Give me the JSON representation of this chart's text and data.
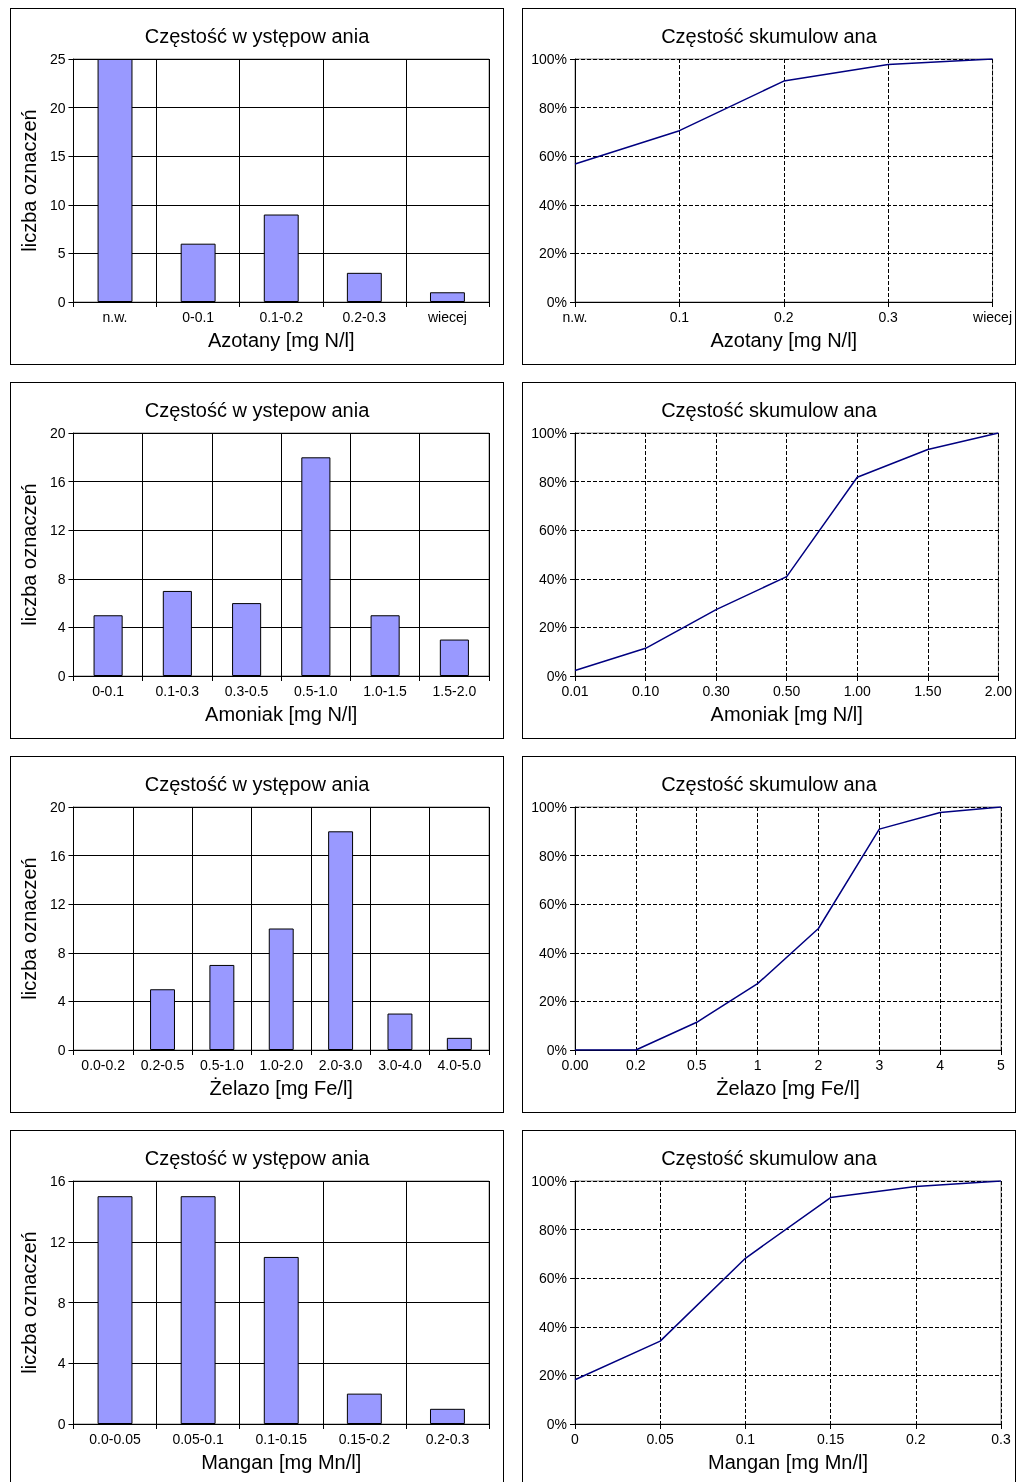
{
  "chart_data": [
    {
      "type": "bar",
      "title": "Częstość w ystępow ania",
      "xlabel": "Azotany [mg N/l]",
      "ylabel": "liczba oznaczeń",
      "categories": [
        "n.w.",
        "0-0.1",
        "0.1-0.2",
        "0.2-0.3",
        "wiecej"
      ],
      "values": [
        25,
        6,
        9,
        3,
        1
      ],
      "color": "#9999ff",
      "ylim": [
        0,
        25
      ],
      "yticks": [
        0,
        5,
        10,
        15,
        20,
        25
      ],
      "grid": true
    },
    {
      "type": "line",
      "title": "Częstość skumulow ana",
      "xlabel": "Azotany [mg N/l]",
      "categories": [
        "n.w.",
        "0.1",
        "0.2",
        "0.3",
        "wiecej"
      ],
      "values": [
        56.8,
        70.5,
        90.9,
        97.7,
        100
      ],
      "color": "#000080",
      "ylim": [
        0,
        100
      ],
      "yticks": [
        {
          "value": 0,
          "label": "0%"
        },
        {
          "value": 20,
          "label": "20%"
        },
        {
          "value": 40,
          "label": "40%"
        },
        {
          "value": 60,
          "label": "60%"
        },
        {
          "value": 80,
          "label": "80%"
        },
        {
          "value": 100,
          "label": "100%"
        }
      ],
      "grid": true,
      "marker": "none",
      "line_style": "solid"
    },
    {
      "type": "bar",
      "title": "Częstość w ystepow ania",
      "xlabel": "Amoniak [mg N/l]",
      "ylabel": "liczba oznaczeń",
      "categories": [
        "0-0.1",
        "0.1-0.3",
        "0.3-0.5",
        "0.5-1.0",
        "1.0-1.5",
        "1.5-2.0"
      ],
      "values": [
        5,
        7,
        6,
        18,
        5,
        3
      ],
      "color": "#9999ff",
      "ylim": [
        0,
        20
      ],
      "yticks": [
        0,
        4,
        8,
        12,
        16,
        20
      ],
      "grid": true
    },
    {
      "type": "line",
      "title": "Częstość skumulow ana",
      "xlabel": "Amoniak [mg N/l]",
      "categories": [
        "0.01",
        "0.10",
        "0.30",
        "0.50",
        "1.00",
        "1.50",
        "2.00"
      ],
      "values": [
        2.3,
        11.4,
        27.3,
        40.9,
        81.8,
        93.2,
        100
      ],
      "color": "#000080",
      "ylim": [
        0,
        100
      ],
      "yticks": [
        {
          "value": 0,
          "label": "0%"
        },
        {
          "value": 20,
          "label": "20%"
        },
        {
          "value": 40,
          "label": "40%"
        },
        {
          "value": 60,
          "label": "60%"
        },
        {
          "value": 80,
          "label": "80%"
        },
        {
          "value": 100,
          "label": "100%"
        }
      ],
      "grid": true,
      "marker": "none",
      "line_style": "solid"
    },
    {
      "type": "bar",
      "title": "Częstość w ystępow ania",
      "xlabel": "Żelazo [mg Fe/l]",
      "ylabel": "liczba oznaczeń",
      "categories": [
        "0.0-0.2",
        "0.2-0.5",
        "0.5-1.0",
        "1.0-2.0",
        "2.0-3.0",
        "3.0-4.0",
        "4.0-5.0"
      ],
      "values": [
        0,
        5,
        7,
        10,
        18,
        3,
        1
      ],
      "color": "#9999ff",
      "ylim": [
        0,
        20
      ],
      "yticks": [
        0,
        4,
        8,
        12,
        16,
        20
      ],
      "grid": true
    },
    {
      "type": "line",
      "title": "Częstość skumulow ana",
      "xlabel": "Żelazo [mg Fe/l]",
      "categories": [
        "0.00",
        "0.2",
        "0.5",
        "1",
        "2",
        "3",
        "4",
        "5"
      ],
      "values": [
        0,
        0,
        11.4,
        27.3,
        50,
        90.9,
        97.7,
        100
      ],
      "color": "#000080",
      "ylim": [
        0,
        100
      ],
      "yticks": [
        {
          "value": 0,
          "label": "0%"
        },
        {
          "value": 20,
          "label": "20%"
        },
        {
          "value": 40,
          "label": "40%"
        },
        {
          "value": 60,
          "label": "60%"
        },
        {
          "value": 80,
          "label": "80%"
        },
        {
          "value": 100,
          "label": "100%"
        }
      ],
      "grid": true,
      "marker": "none",
      "line_style": "solid"
    },
    {
      "type": "bar",
      "title": "Częstość w ystępow ania",
      "xlabel": "Mangan [mg Mn/l]",
      "ylabel": "liczba oznaczeń",
      "categories": [
        "0.0-0.05",
        "0.05-0.1",
        "0.1-0.15",
        "0.15-0.2",
        "0.2-0.3"
      ],
      "values": [
        15,
        15,
        11,
        2,
        1
      ],
      "color": "#9999ff",
      "ylim": [
        0,
        16
      ],
      "yticks": [
        0,
        4,
        8,
        12,
        16
      ],
      "grid": true
    },
    {
      "type": "line",
      "title": "Częstość skumulow ana",
      "xlabel": "Mangan [mg Mn/l]",
      "categories": [
        "0",
        "0.05",
        "0.1",
        "0.15",
        "0.2",
        "0.3"
      ],
      "values": [
        18.2,
        34.1,
        68.2,
        93.2,
        97.7,
        100
      ],
      "color": "#000080",
      "ylim": [
        0,
        100
      ],
      "yticks": [
        {
          "value": 0,
          "label": "0%"
        },
        {
          "value": 20,
          "label": "20%"
        },
        {
          "value": 40,
          "label": "40%"
        },
        {
          "value": 60,
          "label": "60%"
        },
        {
          "value": 80,
          "label": "80%"
        },
        {
          "value": 100,
          "label": "100%"
        }
      ],
      "grid": true,
      "marker": "none",
      "line_style": "solid"
    }
  ]
}
